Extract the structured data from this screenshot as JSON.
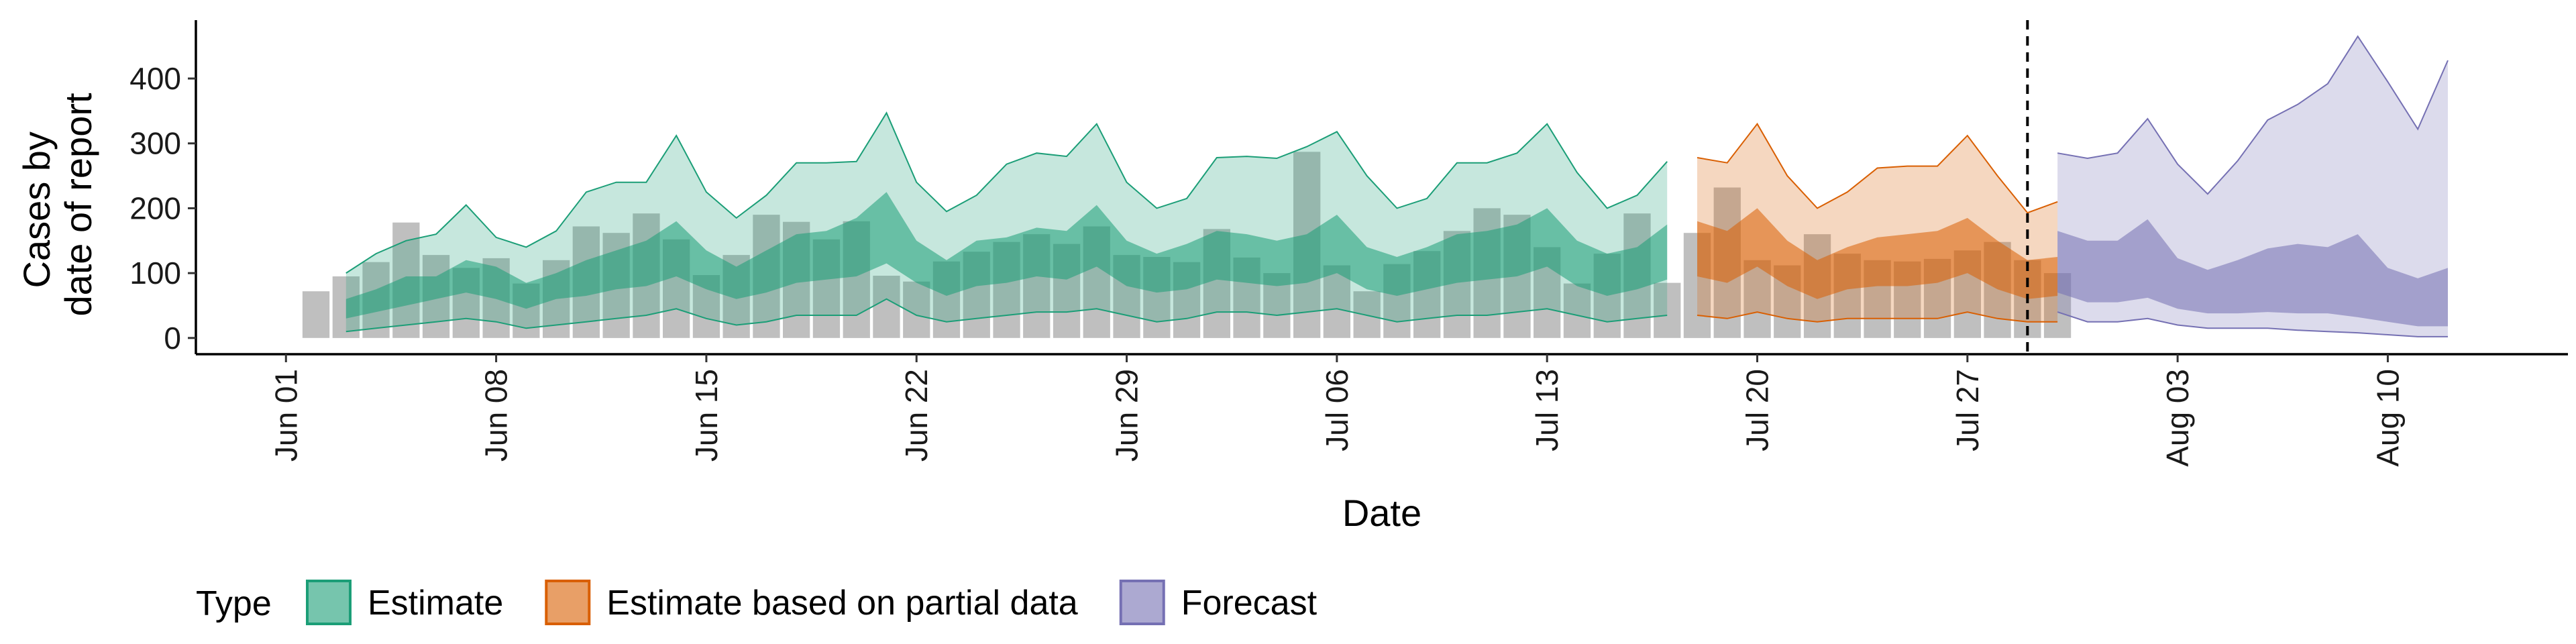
{
  "chart_data": {
    "type": "area",
    "xlabel": "Date",
    "ylabel": "Cases by date of report",
    "ylabel_lines": [
      "Cases by",
      "date of report"
    ],
    "x_range": [
      "2020-05-29",
      "2020-08-16"
    ],
    "ylim": [
      -25,
      490
    ],
    "y_ticks": [
      0,
      100,
      200,
      300,
      400
    ],
    "x_ticks": [
      {
        "date": "2020-06-01",
        "label": "Jun 01"
      },
      {
        "date": "2020-06-08",
        "label": "Jun 08"
      },
      {
        "date": "2020-06-15",
        "label": "Jun 15"
      },
      {
        "date": "2020-06-22",
        "label": "Jun 22"
      },
      {
        "date": "2020-06-29",
        "label": "Jun 29"
      },
      {
        "date": "2020-07-06",
        "label": "Jul 06"
      },
      {
        "date": "2020-07-13",
        "label": "Jul 13"
      },
      {
        "date": "2020-07-20",
        "label": "Jul 20"
      },
      {
        "date": "2020-07-27",
        "label": "Jul 27"
      },
      {
        "date": "2020-08-03",
        "label": "Aug 03"
      },
      {
        "date": "2020-08-10",
        "label": "Aug 10"
      }
    ],
    "vline_date": "2020-07-29",
    "grid": false,
    "legend": {
      "position": "bottom-left",
      "title": "Type",
      "entries": [
        {
          "label": "Estimate",
          "color": "#1b9e77"
        },
        {
          "label": "Estimate based on partial data",
          "color": "#d95f02"
        },
        {
          "label": "Forecast",
          "color": "#7570b3"
        }
      ]
    },
    "bars": {
      "color": "#a9a9a9",
      "start_date": "2020-06-02",
      "values": [
        72,
        95,
        117,
        178,
        128,
        108,
        123,
        84,
        120,
        172,
        162,
        192,
        152,
        97,
        128,
        190,
        179,
        152,
        180,
        96,
        87,
        118,
        133,
        148,
        160,
        145,
        172,
        128,
        125,
        117,
        168,
        124,
        100,
        287,
        112,
        72,
        114,
        134,
        165,
        200,
        190,
        140,
        84,
        130,
        192,
        85,
        162,
        232,
        120,
        112,
        160,
        130,
        120,
        118,
        122,
        135,
        148,
        120,
        100
      ]
    },
    "series": [
      {
        "name": "Estimate",
        "color": "#1b9e77",
        "start_date": "2020-06-03",
        "outer_upper": [
          100,
          130,
          150,
          160,
          205,
          155,
          140,
          165,
          225,
          240,
          240,
          312,
          225,
          185,
          220,
          270,
          270,
          272,
          347,
          240,
          195,
          220,
          268,
          285,
          280,
          330,
          240,
          200,
          215,
          278,
          280,
          277,
          295,
          318,
          250,
          200,
          215,
          270,
          270,
          285,
          330,
          255,
          200,
          220,
          272
        ],
        "inner_upper": [
          60,
          75,
          95,
          95,
          120,
          110,
          85,
          100,
          120,
          135,
          150,
          180,
          135,
          110,
          135,
          160,
          165,
          185,
          225,
          150,
          120,
          150,
          155,
          170,
          165,
          205,
          150,
          130,
          145,
          165,
          160,
          150,
          160,
          190,
          140,
          125,
          140,
          160,
          165,
          175,
          200,
          150,
          130,
          140,
          175
        ],
        "inner_lower": [
          30,
          40,
          50,
          60,
          70,
          60,
          45,
          60,
          65,
          75,
          80,
          95,
          75,
          60,
          70,
          85,
          90,
          95,
          115,
          85,
          65,
          80,
          85,
          95,
          90,
          110,
          80,
          70,
          75,
          90,
          85,
          80,
          85,
          100,
          75,
          65,
          75,
          85,
          90,
          95,
          110,
          80,
          65,
          75,
          90
        ],
        "outer_lower": [
          10,
          15,
          20,
          25,
          30,
          25,
          15,
          20,
          25,
          30,
          35,
          45,
          30,
          20,
          25,
          35,
          35,
          35,
          60,
          35,
          25,
          30,
          35,
          40,
          40,
          45,
          35,
          25,
          30,
          40,
          40,
          35,
          40,
          45,
          35,
          25,
          30,
          35,
          35,
          40,
          45,
          35,
          25,
          30,
          35
        ]
      },
      {
        "name": "Estimate based on partial data",
        "color": "#d95f02",
        "start_date": "2020-07-18",
        "outer_upper": [
          278,
          270,
          330,
          250,
          200,
          225,
          262,
          265,
          265,
          312,
          250,
          193,
          210
        ],
        "inner_upper": [
          180,
          165,
          200,
          150,
          120,
          140,
          155,
          160,
          165,
          185,
          150,
          120,
          125
        ],
        "inner_lower": [
          95,
          85,
          110,
          80,
          60,
          75,
          80,
          80,
          85,
          100,
          75,
          60,
          65
        ],
        "outer_lower": [
          35,
          30,
          40,
          30,
          25,
          30,
          30,
          30,
          30,
          40,
          30,
          25,
          25
        ]
      },
      {
        "name": "Forecast",
        "color": "#7570b3",
        "start_date": "2020-07-30",
        "outer_upper": [
          285,
          277,
          285,
          338,
          268,
          222,
          273,
          336,
          360,
          392,
          465,
          395,
          322,
          428
        ],
        "inner_upper": [
          165,
          150,
          150,
          183,
          123,
          105,
          120,
          138,
          145,
          140,
          160,
          108,
          92,
          108
        ],
        "inner_lower": [
          70,
          55,
          55,
          62,
          45,
          38,
          38,
          40,
          38,
          38,
          32,
          25,
          18,
          18
        ],
        "outer_lower": [
          40,
          25,
          25,
          30,
          20,
          15,
          15,
          15,
          12,
          10,
          8,
          5,
          2,
          2
        ]
      }
    ]
  }
}
